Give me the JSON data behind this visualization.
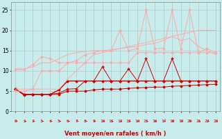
{
  "xlabel": "Vent moyen/en rafales ( km/h )",
  "bg_color": "#c8ecec",
  "grid_color": "#aacccc",
  "x": [
    0,
    1,
    2,
    3,
    4,
    5,
    6,
    7,
    8,
    9,
    10,
    11,
    12,
    13,
    14,
    15,
    16,
    17,
    18,
    19,
    20,
    21,
    22,
    23
  ],
  "lines": [
    {
      "y": [
        5.5,
        4.2,
        4.2,
        4.2,
        4.2,
        4.2,
        5.0,
        5.0,
        5.0,
        5.3,
        5.5,
        5.5,
        5.5,
        5.7,
        5.8,
        5.9,
        6.0,
        6.0,
        6.2,
        6.3,
        6.4,
        6.5,
        6.6,
        6.7
      ],
      "color": "#cc0000",
      "lw": 0.7,
      "marker": "D",
      "ms": 1.5
    },
    {
      "y": [
        5.5,
        4.2,
        4.2,
        4.2,
        4.2,
        5.3,
        7.5,
        7.5,
        7.5,
        7.5,
        7.5,
        7.5,
        7.5,
        7.5,
        7.5,
        7.5,
        7.5,
        7.5,
        7.5,
        7.5,
        7.5,
        7.5,
        7.5,
        7.5
      ],
      "color": "#cc0000",
      "lw": 1.0,
      "marker": "D",
      "ms": 1.5
    },
    {
      "y": [
        5.5,
        4.0,
        4.2,
        4.2,
        4.2,
        4.5,
        5.5,
        5.6,
        7.5,
        7.5,
        11.0,
        7.5,
        7.5,
        10.5,
        7.5,
        13.0,
        7.5,
        7.5,
        13.0,
        7.5,
        7.5,
        7.5,
        7.5,
        7.5
      ],
      "color": "#cc0000",
      "lw": 0.7,
      "marker": "+",
      "ms": 3
    },
    {
      "y": [
        10.3,
        10.3,
        11.5,
        13.5,
        13.0,
        12.0,
        12.0,
        12.0,
        12.0,
        12.0,
        12.0,
        12.0,
        12.0,
        12.0,
        14.5,
        14.5,
        14.5,
        14.5,
        14.5,
        14.5,
        14.5,
        14.5,
        14.5,
        14.5
      ],
      "color": "#ffaaaa",
      "lw": 0.7,
      "marker": "D",
      "ms": 1.5
    },
    {
      "y": [
        5.0,
        5.0,
        5.5,
        10.0,
        10.0,
        10.0,
        12.0,
        12.5,
        14.0,
        14.5,
        15.0,
        15.0,
        20.0,
        15.0,
        15.5,
        25.0,
        15.5,
        15.5,
        25.0,
        15.5,
        25.0,
        14.5,
        15.5,
        14.5
      ],
      "color": "#ffaaaa",
      "lw": 0.7,
      "marker": "D",
      "ms": 1.5
    },
    {
      "y": [
        10.5,
        10.5,
        11.0,
        12.0,
        12.0,
        13.0,
        14.0,
        14.5,
        14.8,
        15.0,
        15.0,
        15.2,
        15.5,
        15.8,
        16.0,
        16.5,
        16.8,
        17.5,
        18.5,
        17.5,
        18.0,
        16.0,
        15.0,
        14.0
      ],
      "color": "#ffaaaa",
      "lw": 0.7,
      "marker": null,
      "ms": 0
    },
    {
      "y": [
        5.5,
        5.5,
        5.5,
        5.5,
        5.5,
        5.5,
        8.0,
        10.0,
        12.0,
        14.0,
        14.5,
        15.0,
        15.5,
        16.0,
        16.5,
        17.0,
        17.5,
        18.0,
        18.5,
        19.0,
        19.5,
        20.0,
        20.0,
        20.0
      ],
      "color": "#ffaaaa",
      "lw": 0.7,
      "marker": null,
      "ms": 0
    }
  ],
  "ylim": [
    0,
    27
  ],
  "yticks": [
    0,
    5,
    10,
    15,
    20,
    25
  ],
  "xticks": [
    0,
    1,
    2,
    3,
    4,
    5,
    6,
    7,
    8,
    9,
    10,
    11,
    12,
    13,
    14,
    15,
    16,
    17,
    18,
    19,
    20,
    21,
    22,
    23
  ],
  "arrow_color": "#cc2222",
  "xlabel_color": "#cc0000",
  "tick_color": "#cc0000"
}
